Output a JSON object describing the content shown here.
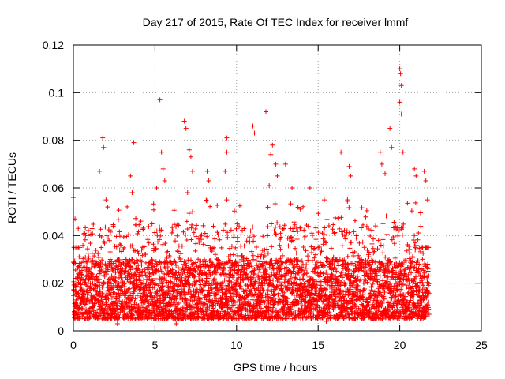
{
  "chart_data": {
    "type": "scatter",
    "title": "Day 217 of 2015, Rate Of TEC Index for receiver lmmf",
    "xlabel": "GPS time / hours",
    "ylabel": "ROTI / TECUs",
    "xlim": [
      0,
      25
    ],
    "ylim": [
      0,
      0.12
    ],
    "grid": true,
    "marker": "+",
    "color": "#ff0000",
    "x_ticks": [
      0,
      5,
      10,
      15,
      20,
      25
    ],
    "x_tick_labels": [
      "0",
      "5",
      "10",
      "15",
      "20",
      "25"
    ],
    "y_ticks": [
      0,
      0.02,
      0.04,
      0.06,
      0.08,
      0.1,
      0.12
    ],
    "y_tick_labels": [
      "0",
      "0.02",
      "0.04",
      "0.06",
      "0.08",
      "0.1",
      "0.12"
    ],
    "series": [
      {
        "name": "ROTI",
        "x_range": [
          0,
          21.8
        ],
        "baseline_band": [
          0.005,
          0.03
        ],
        "typical_peak": 0.045,
        "notable_points": [
          {
            "x": 0.0,
            "y": 0.056
          },
          {
            "x": 0.1,
            "y": 0.047
          },
          {
            "x": 0.3,
            "y": 0.043
          },
          {
            "x": 0.9,
            "y": 0.04
          },
          {
            "x": 1.6,
            "y": 0.067
          },
          {
            "x": 1.8,
            "y": 0.081
          },
          {
            "x": 1.85,
            "y": 0.077
          },
          {
            "x": 2.0,
            "y": 0.055
          },
          {
            "x": 2.1,
            "y": 0.052
          },
          {
            "x": 3.5,
            "y": 0.065
          },
          {
            "x": 3.7,
            "y": 0.079
          },
          {
            "x": 3.6,
            "y": 0.058
          },
          {
            "x": 5.1,
            "y": 0.06
          },
          {
            "x": 5.3,
            "y": 0.097
          },
          {
            "x": 5.4,
            "y": 0.075
          },
          {
            "x": 5.5,
            "y": 0.068
          },
          {
            "x": 5.6,
            "y": 0.063
          },
          {
            "x": 6.8,
            "y": 0.088
          },
          {
            "x": 6.9,
            "y": 0.085
          },
          {
            "x": 7.1,
            "y": 0.076
          },
          {
            "x": 7.2,
            "y": 0.073
          },
          {
            "x": 7.3,
            "y": 0.067
          },
          {
            "x": 7.0,
            "y": 0.058
          },
          {
            "x": 8.2,
            "y": 0.067
          },
          {
            "x": 8.3,
            "y": 0.063
          },
          {
            "x": 9.4,
            "y": 0.081
          },
          {
            "x": 9.4,
            "y": 0.075
          },
          {
            "x": 9.3,
            "y": 0.067
          },
          {
            "x": 9.4,
            "y": 0.055
          },
          {
            "x": 11.0,
            "y": 0.086
          },
          {
            "x": 11.1,
            "y": 0.083
          },
          {
            "x": 11.8,
            "y": 0.092
          },
          {
            "x": 12.1,
            "y": 0.074
          },
          {
            "x": 12.2,
            "y": 0.078
          },
          {
            "x": 12.4,
            "y": 0.07
          },
          {
            "x": 12.5,
            "y": 0.065
          },
          {
            "x": 12.0,
            "y": 0.061
          },
          {
            "x": 13.0,
            "y": 0.07
          },
          {
            "x": 13.4,
            "y": 0.06
          },
          {
            "x": 14.5,
            "y": 0.06
          },
          {
            "x": 16.4,
            "y": 0.075
          },
          {
            "x": 16.9,
            "y": 0.069
          },
          {
            "x": 17.0,
            "y": 0.065
          },
          {
            "x": 16.8,
            "y": 0.055
          },
          {
            "x": 18.8,
            "y": 0.075
          },
          {
            "x": 18.9,
            "y": 0.07
          },
          {
            "x": 19.1,
            "y": 0.066
          },
          {
            "x": 19.4,
            "y": 0.085
          },
          {
            "x": 19.5,
            "y": 0.077
          },
          {
            "x": 20.0,
            "y": 0.11
          },
          {
            "x": 20.05,
            "y": 0.108
          },
          {
            "x": 20.1,
            "y": 0.103
          },
          {
            "x": 20.0,
            "y": 0.096
          },
          {
            "x": 20.1,
            "y": 0.091
          },
          {
            "x": 20.2,
            "y": 0.075
          },
          {
            "x": 20.9,
            "y": 0.068
          },
          {
            "x": 21.0,
            "y": 0.065
          },
          {
            "x": 21.5,
            "y": 0.067
          },
          {
            "x": 21.6,
            "y": 0.063
          },
          {
            "x": 21.7,
            "y": 0.055
          },
          {
            "x": 2.7,
            "y": 0.003
          },
          {
            "x": 6.3,
            "y": 0.003
          },
          {
            "x": 15.5,
            "y": 0.004
          }
        ]
      }
    ]
  }
}
